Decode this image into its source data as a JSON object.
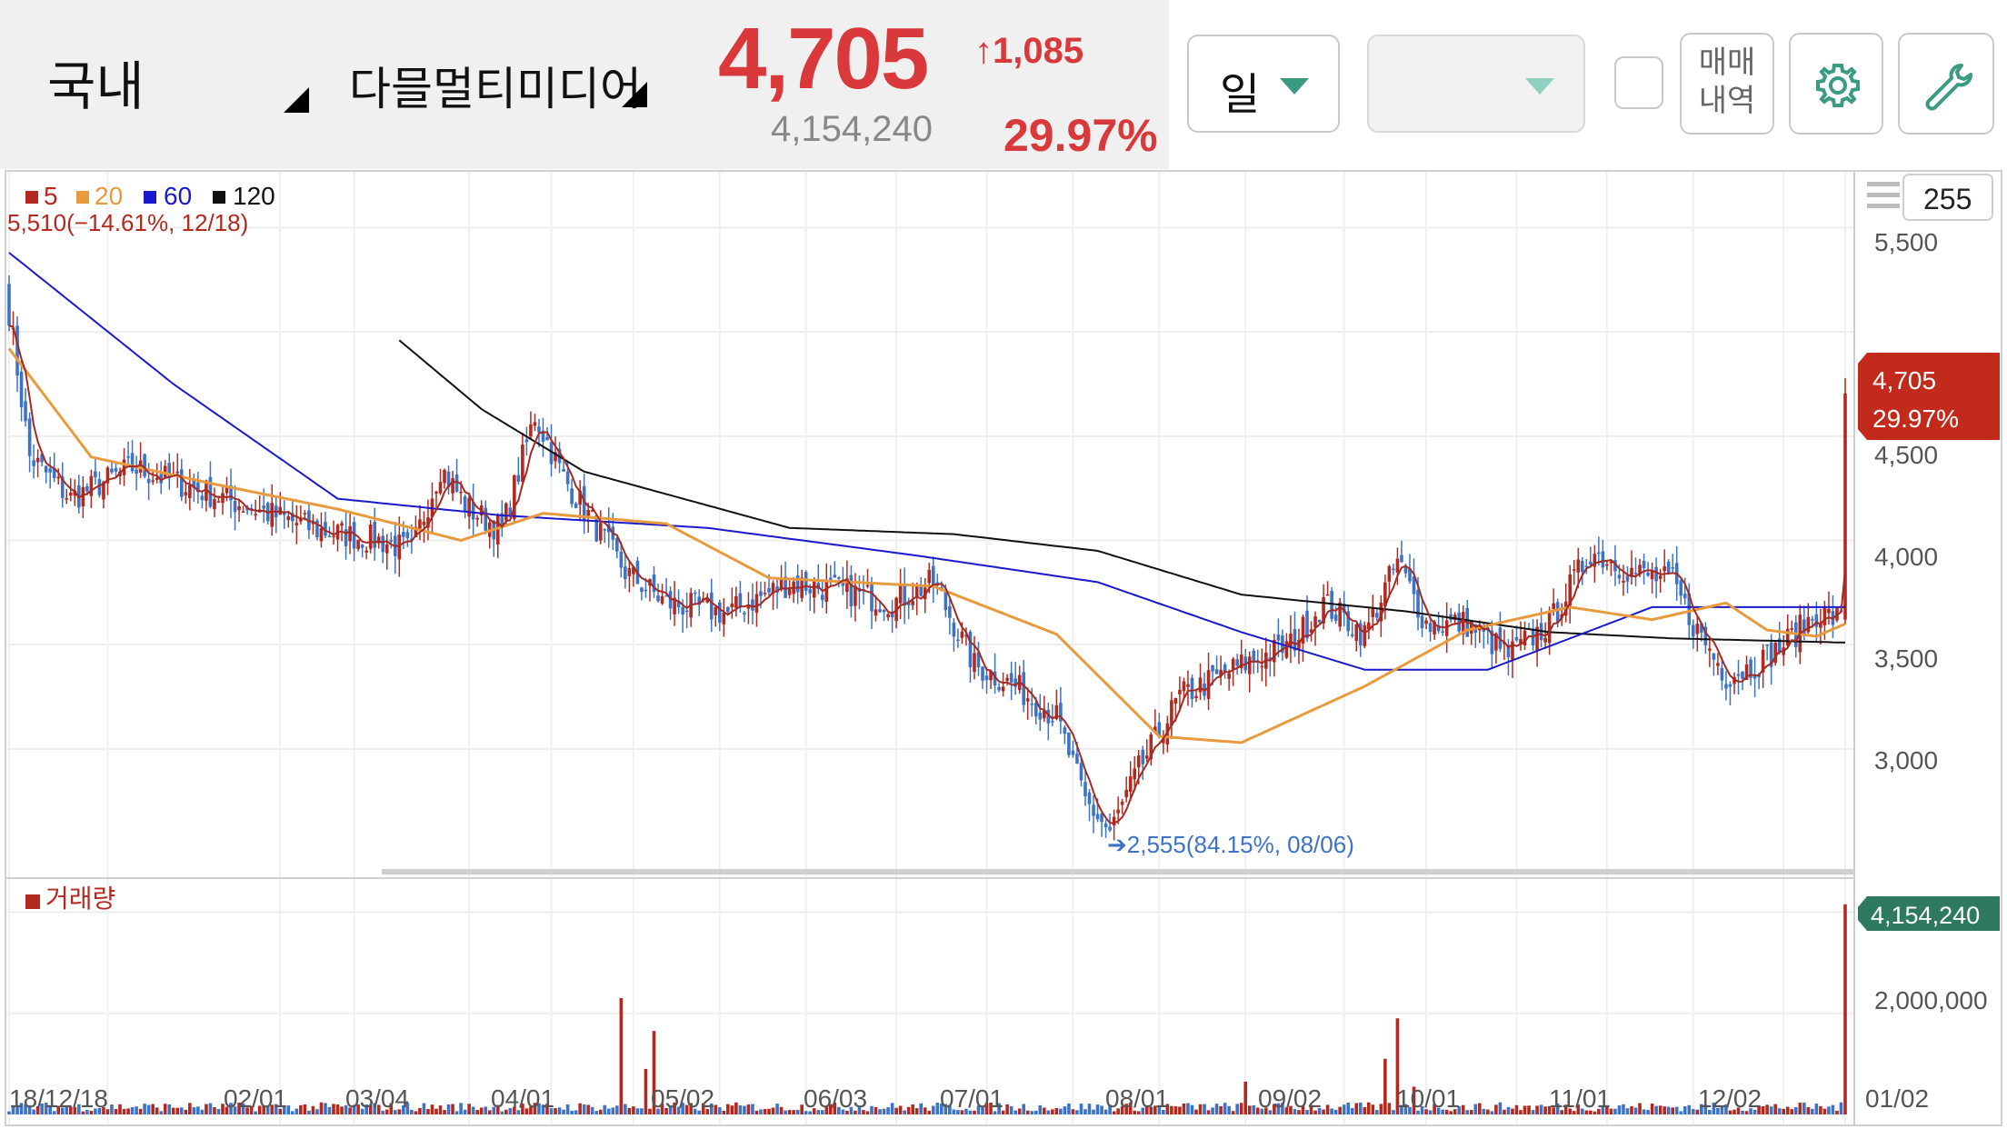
{
  "header": {
    "market": "국내",
    "stock_name": "다믈멀티미디어",
    "price": "4,705",
    "change": "↑1,085",
    "volume": "4,154,240",
    "change_pct": "29.97%"
  },
  "toolbar": {
    "period": "일",
    "history_label_1": "매매",
    "history_label_2": "내역",
    "count": "255"
  },
  "colors": {
    "up": "#b22a1f",
    "down": "#3c73c6",
    "ma5": "#a52a22",
    "ma20": "#e89b3c",
    "ma60": "#1a1acc",
    "ma120": "#111111",
    "accent": "#3a9a82"
  },
  "icons": [
    "gear-icon",
    "wrench-icon",
    "menu-icon",
    "caret-down-icon"
  ],
  "chart_data": {
    "type": "candlestick",
    "legend": [
      {
        "label": "5",
        "color": "#b22a1f"
      },
      {
        "label": "20",
        "color": "#e89b3c"
      },
      {
        "label": "60",
        "color": "#1a1acc"
      },
      {
        "label": "120",
        "color": "#111111"
      }
    ],
    "high_label": "5,510(−14.61%, 12/18)",
    "low_label": "➔2,555(84.15%, 08/06)",
    "price_axis_ticks": [
      "5,500",
      "4,500",
      "4,000",
      "3,500",
      "3,000"
    ],
    "price_ylim": [
      2450,
      5720
    ],
    "current_price_label": "4,705",
    "current_pct_label": "29.97%",
    "current_price": 4705,
    "volume_label": "거래량",
    "volume_axis_ticks": [
      "2,000,000"
    ],
    "volume_ylim": [
      0,
      4600000
    ],
    "current_volume_label": "4,154,240",
    "current_volume": 4154240,
    "x_ticks": [
      "18/12/18",
      "02/01",
      "03/04",
      "04/01",
      "05/02",
      "06/03",
      "07/01",
      "08/01",
      "09/02",
      "10/01",
      "11/01",
      "12/02",
      "01/02"
    ],
    "close_keypoints": [
      [
        0,
        5100
      ],
      [
        5,
        4400
      ],
      [
        15,
        4200
      ],
      [
        30,
        4350
      ],
      [
        45,
        4250
      ],
      [
        60,
        4150
      ],
      [
        75,
        4050
      ],
      [
        90,
        4000
      ],
      [
        98,
        3950
      ],
      [
        105,
        4350
      ],
      [
        112,
        4150
      ],
      [
        120,
        4050
      ],
      [
        128,
        4600
      ],
      [
        135,
        4300
      ],
      [
        150,
        3850
      ],
      [
        160,
        3700
      ],
      [
        175,
        3650
      ],
      [
        190,
        3800
      ],
      [
        205,
        3750
      ],
      [
        215,
        3700
      ],
      [
        225,
        3800
      ],
      [
        235,
        3400
      ],
      [
        245,
        3300
      ],
      [
        255,
        3150
      ],
      [
        262,
        2750
      ],
      [
        268,
        2600
      ],
      [
        275,
        2900
      ],
      [
        285,
        3250
      ],
      [
        300,
        3400
      ],
      [
        312,
        3500
      ],
      [
        320,
        3700
      ],
      [
        330,
        3550
      ],
      [
        338,
        3900
      ],
      [
        345,
        3600
      ],
      [
        355,
        3600
      ],
      [
        365,
        3450
      ],
      [
        375,
        3600
      ],
      [
        385,
        3950
      ],
      [
        395,
        3850
      ],
      [
        405,
        3800
      ],
      [
        410,
        3600
      ],
      [
        418,
        3350
      ],
      [
        425,
        3400
      ],
      [
        432,
        3500
      ],
      [
        440,
        3650
      ],
      [
        446,
        3620
      ],
      [
        447,
        4705
      ]
    ],
    "ma120_keypoints": [
      [
        95,
        4960
      ],
      [
        115,
        4630
      ],
      [
        140,
        4330
      ],
      [
        190,
        4060
      ],
      [
        230,
        4030
      ],
      [
        265,
        3950
      ],
      [
        300,
        3740
      ],
      [
        340,
        3660
      ],
      [
        375,
        3560
      ],
      [
        405,
        3530
      ],
      [
        447,
        3510
      ]
    ],
    "ma60_keypoints": [
      [
        0,
        5380
      ],
      [
        40,
        4750
      ],
      [
        80,
        4200
      ],
      [
        120,
        4120
      ],
      [
        170,
        4060
      ],
      [
        220,
        3930
      ],
      [
        265,
        3800
      ],
      [
        300,
        3560
      ],
      [
        330,
        3380
      ],
      [
        360,
        3380
      ],
      [
        400,
        3680
      ],
      [
        447,
        3680
      ]
    ],
    "ma20_keypoints": [
      [
        0,
        4920
      ],
      [
        20,
        4400
      ],
      [
        50,
        4270
      ],
      [
        80,
        4150
      ],
      [
        110,
        4000
      ],
      [
        130,
        4130
      ],
      [
        160,
        4080
      ],
      [
        185,
        3820
      ],
      [
        225,
        3780
      ],
      [
        255,
        3550
      ],
      [
        280,
        3060
      ],
      [
        300,
        3030
      ],
      [
        330,
        3300
      ],
      [
        355,
        3570
      ],
      [
        380,
        3680
      ],
      [
        400,
        3620
      ],
      [
        418,
        3700
      ],
      [
        428,
        3570
      ],
      [
        440,
        3540
      ],
      [
        447,
        3600
      ]
    ],
    "volume_spikes": [
      [
        149,
        2300000
      ],
      [
        157,
        1650000
      ],
      [
        155,
        900000
      ],
      [
        335,
        1100000
      ],
      [
        338,
        1900000
      ],
      [
        342,
        550000
      ],
      [
        301,
        650000
      ],
      [
        447,
        4154240
      ]
    ]
  }
}
